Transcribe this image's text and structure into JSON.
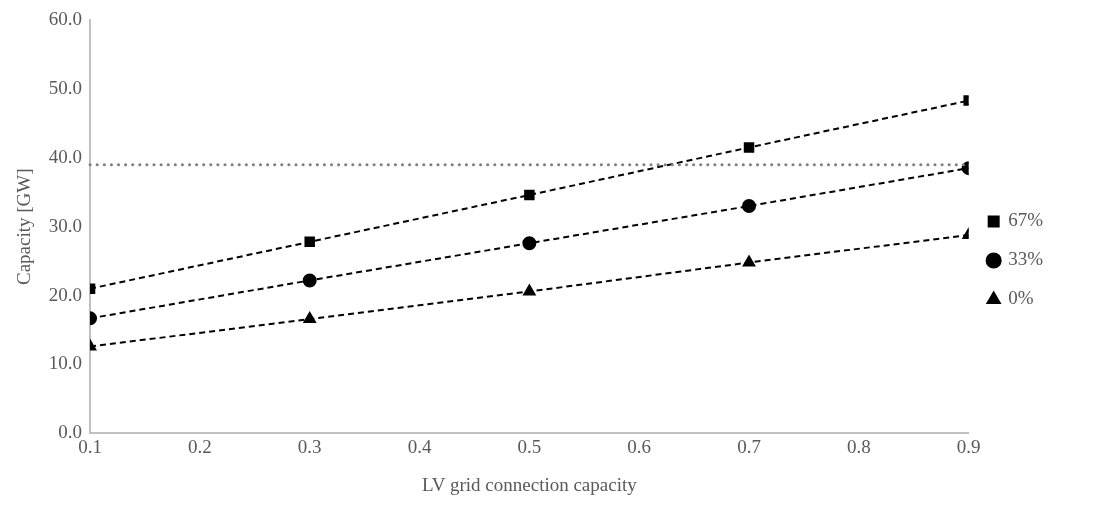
{
  "chart_data": {
    "type": "line",
    "xlabel": "LV grid connection capacity",
    "ylabel": "Capacity [GW]",
    "x": [
      0.1,
      0.3,
      0.5,
      0.7,
      0.9
    ],
    "series": [
      {
        "name": "67%",
        "color": "#000000",
        "marker": "square",
        "values": [
          21.0,
          27.8,
          34.6,
          41.5,
          48.3
        ]
      },
      {
        "name": "33%",
        "color": "#000000",
        "marker": "circle",
        "values": [
          16.7,
          22.2,
          27.6,
          33.0,
          38.5
        ]
      },
      {
        "name": "0%",
        "color": "#000000",
        "marker": "triangle",
        "values": [
          12.6,
          16.6,
          20.6,
          24.8,
          28.8
        ]
      }
    ],
    "line_style": "dashed",
    "xlim": [
      0.1,
      0.9
    ],
    "xticks": [
      0.1,
      0.2,
      0.3,
      0.4,
      0.5,
      0.6,
      0.7,
      0.8,
      0.9
    ],
    "ylim": [
      0,
      60
    ],
    "yticks": [
      {
        "value": 0,
        "label": "0.0"
      },
      {
        "value": 10,
        "label": "10.0"
      },
      {
        "value": 20,
        "label": "20.0"
      },
      {
        "value": 30,
        "label": "30.0"
      },
      {
        "value": 40,
        "label": "40.0"
      },
      {
        "value": 50,
        "label": "50.0"
      },
      {
        "value": 60,
        "label": "60.0"
      }
    ],
    "ref_lines": [
      {
        "axis": "y",
        "value": 39.0,
        "color": "#7f7f7f",
        "line_style": "dotted"
      }
    ],
    "grid": false,
    "legend": "right"
  }
}
